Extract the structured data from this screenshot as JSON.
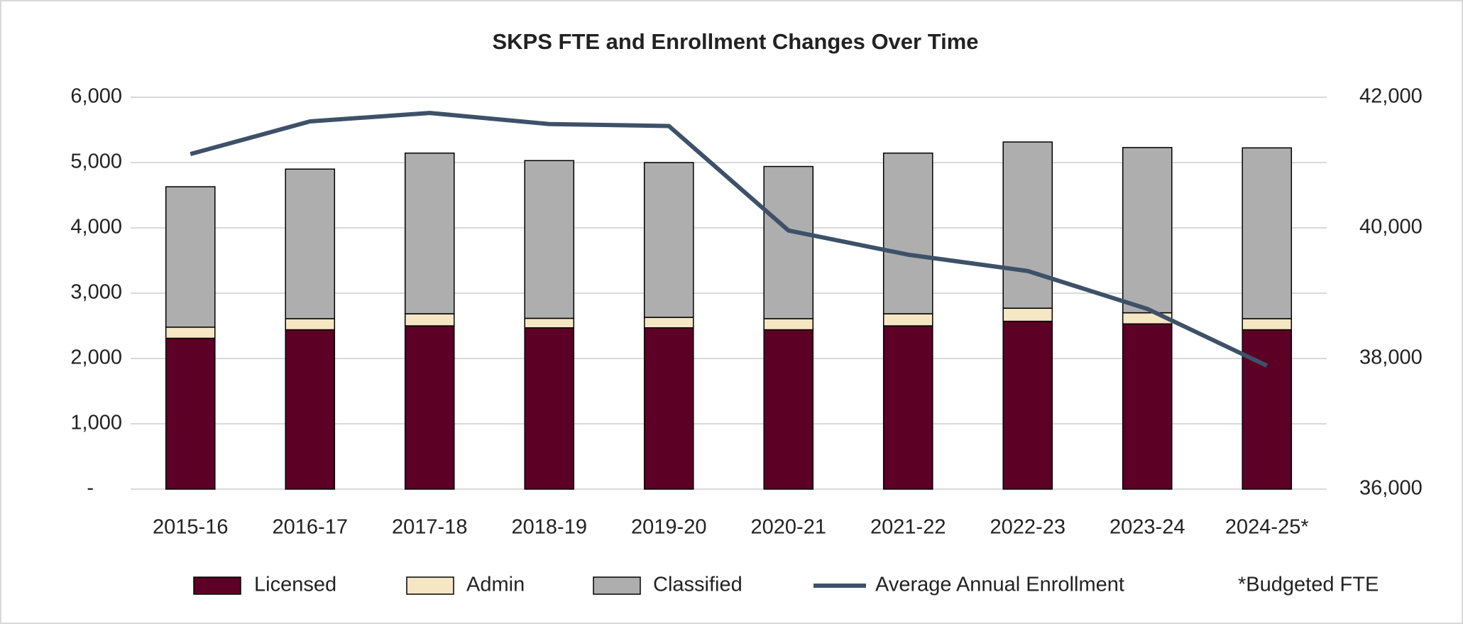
{
  "chart_data": {
    "type": "bar",
    "stacked": true,
    "title": "SKPS FTE and Enrollment Changes Over Time",
    "categories": [
      "2015-16",
      "2016-17",
      "2017-18",
      "2018-19",
      "2019-20",
      "2020-21",
      "2021-22",
      "2022-23",
      "2023-24",
      "2024-25*"
    ],
    "series": [
      {
        "name": "Licensed",
        "color": "#5c0026",
        "values": [
          2310,
          2440,
          2500,
          2470,
          2470,
          2440,
          2500,
          2570,
          2530,
          2440
        ]
      },
      {
        "name": "Admin",
        "color": "#f5e6c4",
        "values": [
          170,
          170,
          185,
          145,
          160,
          170,
          185,
          200,
          170,
          170
        ]
      },
      {
        "name": "Classified",
        "color": "#aeaeae",
        "values": [
          2150,
          2290,
          2460,
          2415,
          2370,
          2330,
          2460,
          2545,
          2530,
          2615
        ]
      },
      {
        "name": "Average Annual Enrollment",
        "type": "line",
        "axis": "y2",
        "color": "#3d5168",
        "values": [
          41130,
          41630,
          41760,
          41590,
          41560,
          39960,
          39590,
          39340,
          38760,
          37890
        ]
      }
    ],
    "ylim": [
      0,
      6000
    ],
    "yticks": [
      {
        "value": 0,
        "label": "-"
      },
      {
        "value": 1000,
        "label": "1,000"
      },
      {
        "value": 2000,
        "label": "2,000"
      },
      {
        "value": 3000,
        "label": "3,000"
      },
      {
        "value": 4000,
        "label": "4,000"
      },
      {
        "value": 5000,
        "label": "5,000"
      },
      {
        "value": 6000,
        "label": "6,000"
      }
    ],
    "y2lim": [
      36000,
      42000
    ],
    "y2ticks": [
      {
        "value": 36000,
        "label": "36,000"
      },
      {
        "value": 38000,
        "label": "38,000"
      },
      {
        "value": 40000,
        "label": "40,000"
      },
      {
        "value": 42000,
        "label": "42,000"
      }
    ],
    "grid": true,
    "legend": "bottom",
    "note": "*Budgeted FTE"
  }
}
